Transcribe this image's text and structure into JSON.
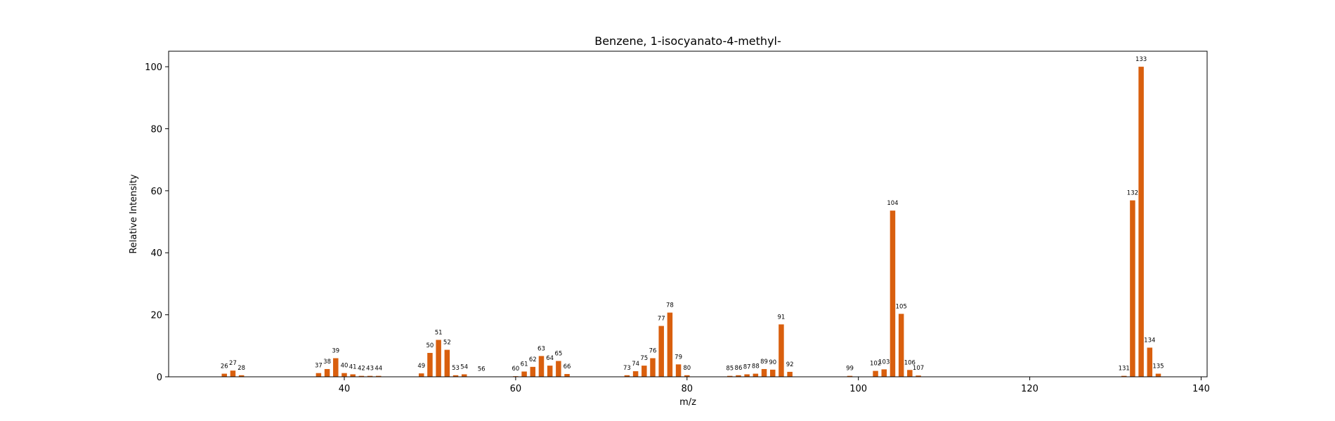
{
  "chart_data": {
    "type": "bar",
    "title": "Benzene, 1-isocyanato-4-methyl-",
    "xlabel": "m/z",
    "ylabel": "Relative Intensity",
    "xlim": [
      19.5,
      140.7
    ],
    "ylim": [
      0,
      105
    ],
    "xticks": [
      40,
      60,
      80,
      100,
      120,
      140
    ],
    "yticks": [
      0,
      20,
      40,
      60,
      80,
      100
    ],
    "grid": false,
    "bar_color": "#d95f0e",
    "series": [
      {
        "name": "Relative Intensity",
        "x": [
          26,
          27,
          28,
          37,
          38,
          39,
          40,
          41,
          42,
          43,
          44,
          49,
          50,
          51,
          52,
          53,
          54,
          56,
          60,
          61,
          62,
          63,
          64,
          65,
          66,
          73,
          74,
          75,
          76,
          77,
          78,
          79,
          80,
          85,
          86,
          87,
          88,
          89,
          90,
          91,
          92,
          99,
          102,
          103,
          104,
          105,
          106,
          107,
          131,
          132,
          133,
          134,
          135
        ],
        "values": [
          1,
          2,
          0.5,
          1.2,
          2.5,
          6,
          1.2,
          0.8,
          0.3,
          0.3,
          0.3,
          1.1,
          7.7,
          11.9,
          8.7,
          0.5,
          0.8,
          0.1,
          0.2,
          1.7,
          3.2,
          6.7,
          3.6,
          5.1,
          0.9,
          0.5,
          1.8,
          3.6,
          6,
          16.4,
          20.7,
          4,
          0.5,
          0.3,
          0.5,
          0.8,
          1,
          2.5,
          2.3,
          16.9,
          1.6,
          0.3,
          1.9,
          2.4,
          53.6,
          20.3,
          2.2,
          0.4,
          0.3,
          56.9,
          100,
          9.4,
          1
        ]
      }
    ]
  }
}
